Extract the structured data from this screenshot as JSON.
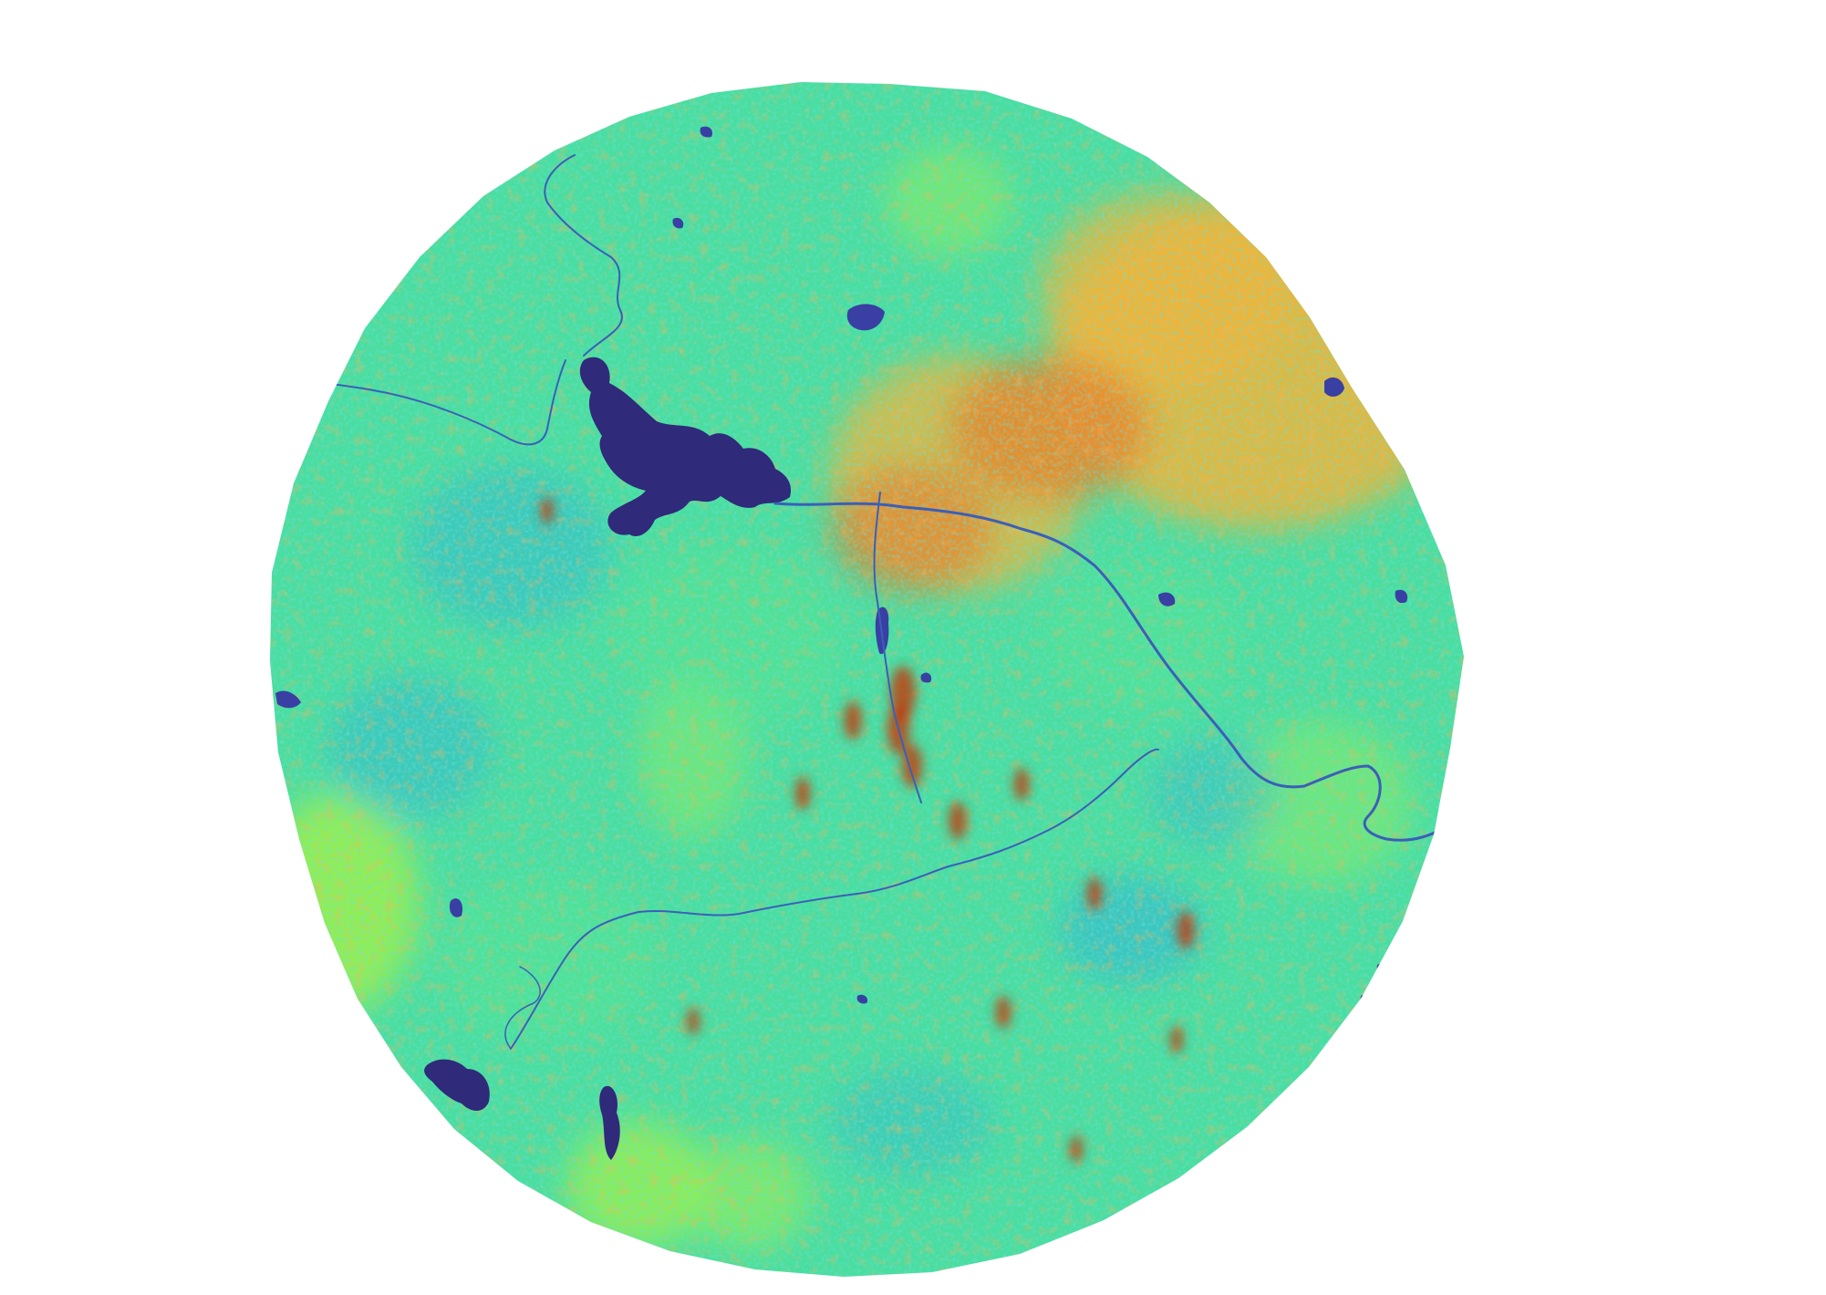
{
  "map": {
    "type": "raster-heatmap",
    "colormap": "turbo",
    "colormap_stops": [
      "#30123b",
      "#4145ab",
      "#2fb2d9",
      "#3fd6b0",
      "#56e58d",
      "#99f04e",
      "#d2e434",
      "#f6b334",
      "#f07120",
      "#c92d05"
    ],
    "background_color": "#ffffff",
    "extent_shape": "polygonal-circle",
    "water_color": "#2f2a7a",
    "river_color": "#3b5fb8"
  }
}
